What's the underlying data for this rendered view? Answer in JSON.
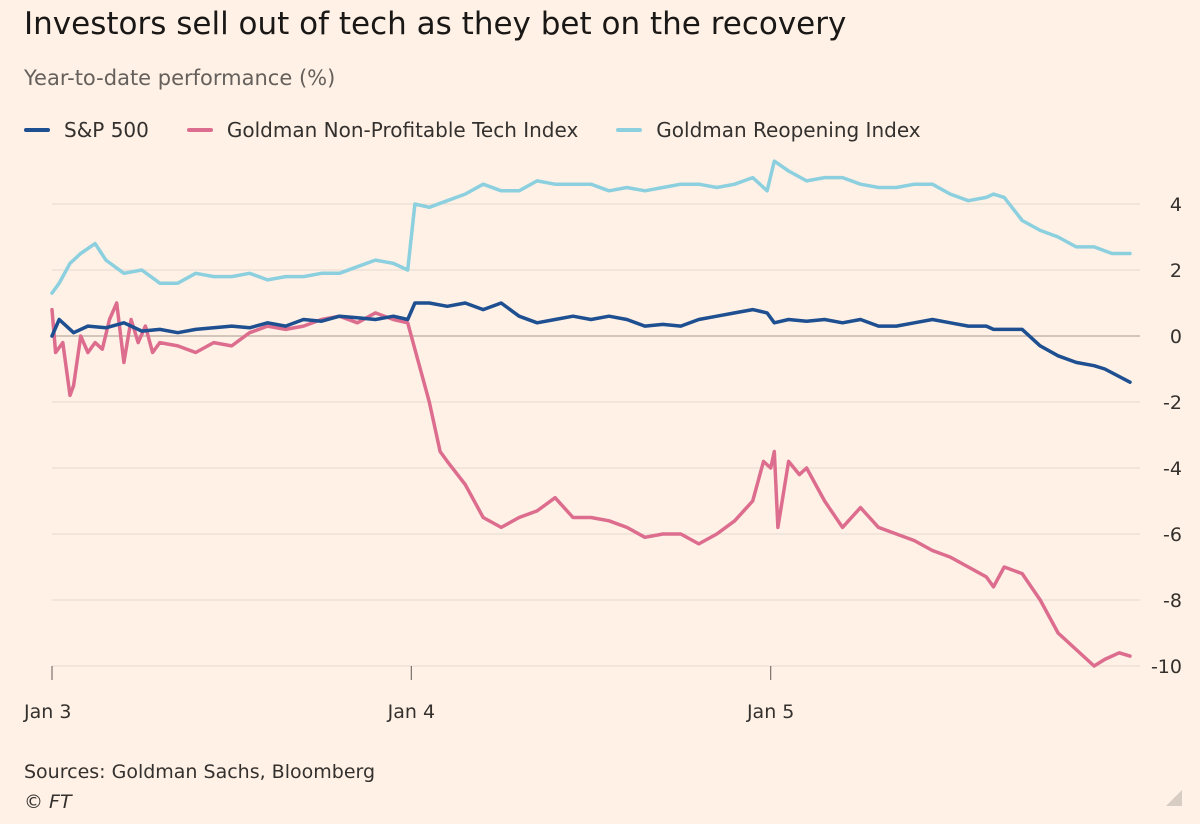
{
  "chart_data": {
    "type": "line",
    "title": "Investors sell out of tech as they bet on the recovery",
    "subtitle": "Year-to-date performance (%)",
    "source": "Sources: Goldman Sachs, Bloomberg",
    "copyright": "© FT",
    "x_ticks": [
      "Jan 3",
      "Jan 4",
      "Jan 5"
    ],
    "xlim": [
      0,
      3
    ],
    "y_ticks": [
      4,
      2,
      0,
      -2,
      -4,
      -6,
      -8,
      -10
    ],
    "ylim": [
      -10,
      5.5
    ],
    "y_axis_side": "right",
    "grid": true,
    "legend_placement": "top-left",
    "series": [
      {
        "name": "S&P 500",
        "color": "#1d4f91",
        "x": [
          0,
          0.02,
          0.06,
          0.1,
          0.15,
          0.2,
          0.25,
          0.3,
          0.35,
          0.4,
          0.45,
          0.5,
          0.55,
          0.6,
          0.65,
          0.7,
          0.75,
          0.8,
          0.85,
          0.9,
          0.95,
          0.99,
          1.01,
          1.05,
          1.1,
          1.15,
          1.2,
          1.25,
          1.3,
          1.35,
          1.4,
          1.45,
          1.5,
          1.55,
          1.6,
          1.65,
          1.7,
          1.75,
          1.8,
          1.85,
          1.9,
          1.95,
          1.99,
          2.01,
          2.05,
          2.1,
          2.15,
          2.2,
          2.25,
          2.3,
          2.35,
          2.4,
          2.45,
          2.5,
          2.55,
          2.6,
          2.62,
          2.65,
          2.7,
          2.75,
          2.8,
          2.85,
          2.9,
          2.93,
          3.0
        ],
        "values": [
          0,
          0.5,
          0.1,
          0.3,
          0.25,
          0.4,
          0.15,
          0.2,
          0.1,
          0.2,
          0.25,
          0.3,
          0.25,
          0.4,
          0.3,
          0.5,
          0.45,
          0.6,
          0.55,
          0.5,
          0.6,
          0.5,
          1.0,
          1.0,
          0.9,
          1.0,
          0.8,
          1.0,
          0.6,
          0.4,
          0.5,
          0.6,
          0.5,
          0.6,
          0.5,
          0.3,
          0.35,
          0.3,
          0.5,
          0.6,
          0.7,
          0.8,
          0.7,
          0.4,
          0.5,
          0.45,
          0.5,
          0.4,
          0.5,
          0.3,
          0.3,
          0.4,
          0.5,
          0.4,
          0.3,
          0.3,
          0.2,
          0.2,
          0.2,
          -0.3,
          -0.6,
          -0.8,
          -0.9,
          -1.0,
          -1.4
        ]
      },
      {
        "name": "Goldman Non-Profitable Tech Index",
        "color": "#dd6d8e",
        "x": [
          0,
          0.01,
          0.03,
          0.05,
          0.06,
          0.08,
          0.1,
          0.12,
          0.14,
          0.16,
          0.18,
          0.2,
          0.22,
          0.24,
          0.26,
          0.28,
          0.3,
          0.35,
          0.4,
          0.45,
          0.5,
          0.55,
          0.6,
          0.65,
          0.7,
          0.75,
          0.8,
          0.85,
          0.9,
          0.95,
          0.99,
          1.02,
          1.05,
          1.08,
          1.1,
          1.15,
          1.2,
          1.25,
          1.3,
          1.35,
          1.4,
          1.45,
          1.5,
          1.55,
          1.6,
          1.65,
          1.7,
          1.75,
          1.8,
          1.85,
          1.9,
          1.95,
          1.98,
          2.0,
          2.01,
          2.02,
          2.05,
          2.08,
          2.1,
          2.15,
          2.2,
          2.25,
          2.3,
          2.35,
          2.4,
          2.45,
          2.5,
          2.55,
          2.6,
          2.62,
          2.65,
          2.7,
          2.75,
          2.8,
          2.85,
          2.9,
          2.93,
          2.97,
          3.0
        ],
        "values": [
          0.8,
          -0.5,
          -0.2,
          -1.8,
          -1.5,
          0,
          -0.5,
          -0.2,
          -0.4,
          0.5,
          1.0,
          -0.8,
          0.5,
          -0.2,
          0.3,
          -0.5,
          -0.2,
          -0.3,
          -0.5,
          -0.2,
          -0.3,
          0.1,
          0.3,
          0.2,
          0.3,
          0.5,
          0.6,
          0.4,
          0.7,
          0.5,
          0.4,
          -0.8,
          -2.0,
          -3.5,
          -3.8,
          -4.5,
          -5.5,
          -5.8,
          -5.5,
          -5.3,
          -4.9,
          -5.5,
          -5.5,
          -5.6,
          -5.8,
          -6.1,
          -6.0,
          -6.0,
          -6.3,
          -6.0,
          -5.6,
          -5.0,
          -3.8,
          -4.0,
          -3.5,
          -5.8,
          -3.8,
          -4.2,
          -4.0,
          -5.0,
          -5.8,
          -5.2,
          -5.8,
          -6.0,
          -6.2,
          -6.5,
          -6.7,
          -7.0,
          -7.3,
          -7.6,
          -7.0,
          -7.2,
          -8.0,
          -9.0,
          -9.5,
          -10.0,
          -9.8,
          -9.6,
          -9.7
        ]
      },
      {
        "name": "Goldman Reopening Index",
        "color": "#8cd0e0",
        "x": [
          0,
          0.02,
          0.05,
          0.08,
          0.12,
          0.15,
          0.2,
          0.25,
          0.3,
          0.35,
          0.4,
          0.45,
          0.5,
          0.55,
          0.6,
          0.65,
          0.7,
          0.75,
          0.8,
          0.85,
          0.9,
          0.95,
          0.99,
          1.01,
          1.05,
          1.1,
          1.15,
          1.2,
          1.25,
          1.3,
          1.35,
          1.4,
          1.45,
          1.5,
          1.55,
          1.6,
          1.65,
          1.7,
          1.75,
          1.8,
          1.85,
          1.9,
          1.95,
          1.99,
          2.01,
          2.05,
          2.1,
          2.15,
          2.2,
          2.25,
          2.3,
          2.35,
          2.4,
          2.45,
          2.5,
          2.55,
          2.6,
          2.62,
          2.65,
          2.7,
          2.75,
          2.8,
          2.85,
          2.9,
          2.95,
          3.0
        ],
        "values": [
          1.3,
          1.6,
          2.2,
          2.5,
          2.8,
          2.3,
          1.9,
          2.0,
          1.6,
          1.6,
          1.9,
          1.8,
          1.8,
          1.9,
          1.7,
          1.8,
          1.8,
          1.9,
          1.9,
          2.1,
          2.3,
          2.2,
          2.0,
          4.0,
          3.9,
          4.1,
          4.3,
          4.6,
          4.4,
          4.4,
          4.7,
          4.6,
          4.6,
          4.6,
          4.4,
          4.5,
          4.4,
          4.5,
          4.6,
          4.6,
          4.5,
          4.6,
          4.8,
          4.4,
          5.3,
          5.0,
          4.7,
          4.8,
          4.8,
          4.6,
          4.5,
          4.5,
          4.6,
          4.6,
          4.3,
          4.1,
          4.2,
          4.3,
          4.2,
          3.5,
          3.2,
          3.0,
          2.7,
          2.7,
          2.5,
          2.5
        ]
      }
    ]
  }
}
